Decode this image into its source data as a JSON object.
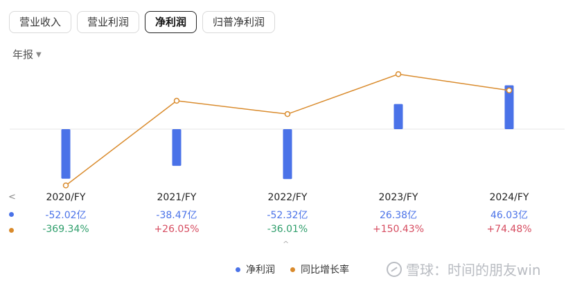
{
  "tabs": [
    {
      "label": "营业收入",
      "active": false
    },
    {
      "label": "营业利润",
      "active": false
    },
    {
      "label": "净利润",
      "active": true
    },
    {
      "label": "归普净利润",
      "active": false
    }
  ],
  "period_selector": {
    "label": "年报",
    "icon": "caret-down-icon"
  },
  "colors": {
    "bar": "#4a72e8",
    "line": "#d98a2b",
    "negative": "#2e9e6b",
    "positive": "#d64b5f",
    "value": "#4a72e8"
  },
  "nav": {
    "prev_icon": "chevron-left-icon",
    "prev_label": "<"
  },
  "collapse": {
    "icon": "chevron-up-icon",
    "label": "^"
  },
  "legend": [
    {
      "label": "净利润",
      "color": "#4a72e8"
    },
    {
      "label": "同比增长率",
      "color": "#d98a2b"
    }
  ],
  "watermark": {
    "text": "雪球：时间的朋友win"
  },
  "chart_data": {
    "type": "bar",
    "categories": [
      "2020/FY",
      "2021/FY",
      "2022/FY",
      "2023/FY",
      "2024/FY"
    ],
    "series": [
      {
        "name": "净利润",
        "kind": "bar",
        "values": [
          -52.02,
          -38.47,
          -52.32,
          26.38,
          46.03
        ],
        "labels": [
          "-52.02亿",
          "-38.47亿",
          "-52.32亿",
          "26.38亿",
          "46.03亿"
        ]
      },
      {
        "name": "同比增长率",
        "kind": "line",
        "values": [
          -369.34,
          26.05,
          -36.01,
          150.43,
          74.48
        ],
        "labels": [
          "-369.34%",
          "+26.05%",
          "-36.01%",
          "+150.43%",
          "+74.48%"
        ]
      }
    ]
  }
}
